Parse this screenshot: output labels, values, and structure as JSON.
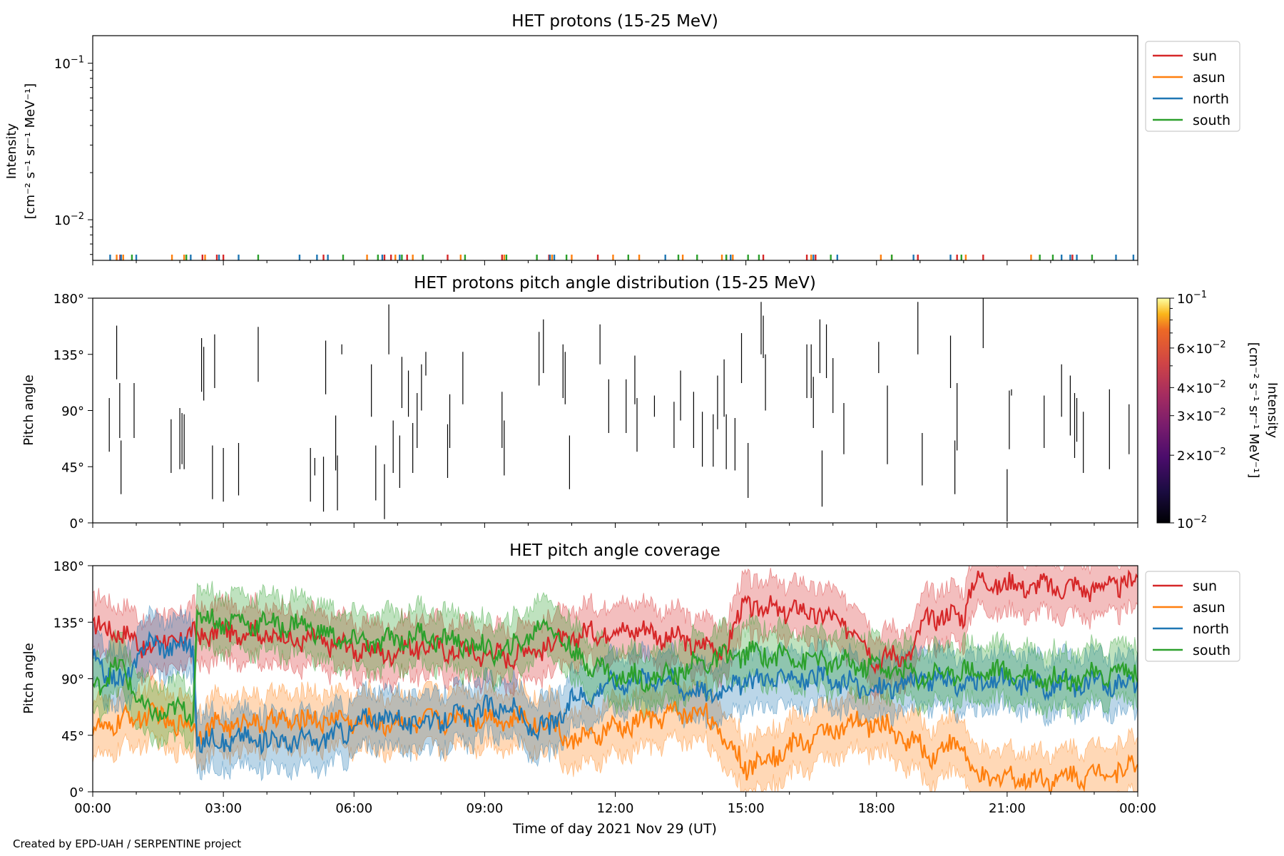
{
  "footer_credit": "Created by EPD-UAH / SERPENTINE project",
  "chart_data": [
    {
      "type": "line",
      "title": "HET protons (15-25 MeV)",
      "ylabel_line1": "Intensity",
      "ylabel_line2": "[cm⁻² s⁻¹ sr⁻¹ MeV⁻¹]",
      "yscale": "log",
      "ylim": [
        0.0055,
        0.15
      ],
      "yticks": [
        {
          "value": 0.01,
          "base": "10",
          "exp": "−2"
        },
        {
          "value": 0.1,
          "base": "10",
          "exp": "−1"
        }
      ],
      "xlim": [
        0,
        24
      ],
      "legend": "top-right outside",
      "series": [
        {
          "name": "sun",
          "color": "#d62728",
          "x": [
            0.63,
            2.52,
            2.85,
            3.0,
            5.3,
            6.7,
            6.85,
            7.22,
            8.15,
            9.4,
            10.48,
            11.6,
            14.55,
            15.4,
            16.4,
            16.6,
            18.95,
            19.85,
            20.45,
            22.5
          ]
        },
        {
          "name": "asun",
          "color": "#ff7f0e",
          "x": [
            0.55,
            0.7,
            1.82,
            2.1,
            2.58,
            6.3,
            6.95,
            7.35,
            8.45,
            9.45,
            10.55,
            11.0,
            11.95,
            12.55,
            13.55,
            14.45,
            14.7,
            16.5,
            18.1,
            18.35,
            20.05,
            21.55
          ]
        },
        {
          "name": "north",
          "color": "#1f77b4",
          "x": [
            0.4,
            0.65,
            1.0,
            2.25,
            2.9,
            3.35,
            4.75,
            5.15,
            5.4,
            6.65,
            7.05,
            10.5,
            10.6,
            13.15,
            14.65,
            16.55,
            17.1,
            18.85,
            19.7,
            22.25,
            22.45,
            22.6,
            23.5,
            23.9
          ]
        },
        {
          "name": "south",
          "color": "#2ca02c",
          "x": [
            0.9,
            2.15,
            3.8,
            5.75,
            6.55,
            7.1,
            7.58,
            8.55,
            9.5,
            10.2,
            10.88,
            12.3,
            13.45,
            13.88,
            14.55,
            15.05,
            15.3,
            16.95,
            18.35,
            19.95,
            21.75,
            22.05,
            22.95
          ]
        }
      ],
      "value_shown": 0.0058
    },
    {
      "type": "heatmap",
      "title": "HET protons pitch angle distribution (15-25 MeV)",
      "ylabel": "Pitch angle",
      "ylim": [
        0,
        180
      ],
      "yticks": [
        "0°",
        "45°",
        "90°",
        "135°",
        "180°"
      ],
      "xlim": [
        0,
        24
      ],
      "colorbar": {
        "label_line1": "Intensity",
        "label_line2": "[cm⁻² s⁻¹ sr⁻¹ MeV⁻¹]",
        "scale": "log",
        "range": [
          0.01,
          0.1
        ],
        "colormap": "inferno",
        "ticks": [
          {
            "value": 0.1,
            "mant": "",
            "exp": "−1"
          },
          {
            "value": 0.06,
            "mant": "6×",
            "exp": "−2"
          },
          {
            "value": 0.04,
            "mant": "4×",
            "exp": "−2"
          },
          {
            "value": 0.03,
            "mant": "3×",
            "exp": "−2"
          },
          {
            "value": 0.02,
            "mant": "2×",
            "exp": "−2"
          },
          {
            "value": 0.01,
            "mant": "",
            "exp": "−2"
          }
        ]
      },
      "segments": [
        [
          0.38,
          57,
          100
        ],
        [
          0.55,
          115,
          158
        ],
        [
          0.62,
          68,
          112
        ],
        [
          0.65,
          23,
          66
        ],
        [
          0.95,
          68,
          112
        ],
        [
          1.8,
          40,
          83
        ],
        [
          2.0,
          43,
          92
        ],
        [
          2.05,
          47,
          88
        ],
        [
          2.1,
          43,
          87
        ],
        [
          2.5,
          105,
          148
        ],
        [
          2.55,
          98,
          141
        ],
        [
          2.75,
          19,
          62
        ],
        [
          2.8,
          108,
          151
        ],
        [
          3.0,
          17,
          60
        ],
        [
          3.35,
          22,
          64
        ],
        [
          3.8,
          113,
          157
        ],
        [
          5.0,
          17,
          60
        ],
        [
          5.1,
          38,
          52
        ],
        [
          5.3,
          9,
          53
        ],
        [
          5.35,
          103,
          146
        ],
        [
          5.58,
          42,
          86
        ],
        [
          5.62,
          10,
          54
        ],
        [
          5.72,
          135,
          143
        ],
        [
          6.4,
          85,
          127
        ],
        [
          6.5,
          18,
          62
        ],
        [
          6.7,
          3,
          47
        ],
        [
          6.8,
          135,
          175
        ],
        [
          6.9,
          40,
          82
        ],
        [
          7.05,
          28,
          70
        ],
        [
          7.1,
          92,
          133
        ],
        [
          7.25,
          85,
          122
        ],
        [
          7.35,
          40,
          80
        ],
        [
          7.45,
          60,
          104
        ],
        [
          7.55,
          90,
          127
        ],
        [
          7.65,
          118,
          137
        ],
        [
          8.15,
          36,
          79
        ],
        [
          8.2,
          60,
          103
        ],
        [
          8.5,
          95,
          137
        ],
        [
          9.4,
          60,
          105
        ],
        [
          9.45,
          38,
          82
        ],
        [
          10.25,
          110,
          153
        ],
        [
          10.35,
          120,
          163
        ],
        [
          10.8,
          100,
          143
        ],
        [
          10.85,
          95,
          137
        ],
        [
          10.95,
          27,
          70
        ],
        [
          11.65,
          127,
          159
        ],
        [
          11.85,
          72,
          115
        ],
        [
          12.25,
          72,
          115
        ],
        [
          12.45,
          95,
          134
        ],
        [
          12.5,
          57,
          100
        ],
        [
          12.9,
          85,
          102
        ],
        [
          13.35,
          60,
          97
        ],
        [
          13.5,
          82,
          122
        ],
        [
          13.8,
          60,
          105
        ],
        [
          14.0,
          45,
          89
        ],
        [
          14.25,
          45,
          87
        ],
        [
          14.35,
          75,
          118
        ],
        [
          14.5,
          85,
          131
        ],
        [
          14.55,
          43,
          87
        ],
        [
          14.75,
          42,
          84
        ],
        [
          14.9,
          112,
          152
        ],
        [
          15.05,
          20,
          64
        ],
        [
          15.35,
          135,
          177
        ],
        [
          15.4,
          132,
          166
        ],
        [
          15.45,
          90,
          135
        ],
        [
          16.4,
          100,
          143
        ],
        [
          16.5,
          100,
          143
        ],
        [
          16.55,
          76,
          117
        ],
        [
          16.7,
          120,
          163
        ],
        [
          16.75,
          13,
          58
        ],
        [
          16.85,
          116,
          159
        ],
        [
          17.0,
          88,
          132
        ],
        [
          17.25,
          55,
          96
        ],
        [
          18.05,
          120,
          145
        ],
        [
          18.25,
          47,
          110
        ],
        [
          18.95,
          135,
          177
        ],
        [
          19.05,
          30,
          72
        ],
        [
          19.7,
          108,
          150
        ],
        [
          19.8,
          23,
          66
        ],
        [
          19.85,
          58,
          112
        ],
        [
          20.45,
          140,
          180
        ],
        [
          21.0,
          1,
          43
        ],
        [
          21.05,
          59,
          106
        ],
        [
          21.1,
          102,
          107
        ],
        [
          21.85,
          60,
          102
        ],
        [
          22.25,
          85,
          127
        ],
        [
          22.45,
          70,
          118
        ],
        [
          22.55,
          52,
          104
        ],
        [
          22.6,
          65,
          100
        ],
        [
          22.75,
          40,
          89
        ],
        [
          23.35,
          43,
          107
        ],
        [
          23.8,
          55,
          95
        ]
      ]
    },
    {
      "type": "line",
      "title": "HET pitch angle coverage",
      "ylabel": "Pitch angle",
      "xlabel": "Time of day 2021 Nov 29 (UT)",
      "ylim": [
        0,
        180
      ],
      "yticks": [
        "0°",
        "45°",
        "90°",
        "135°",
        "180°"
      ],
      "xlim": [
        0,
        24
      ],
      "xticks": [
        "00:00",
        "03:00",
        "06:00",
        "09:00",
        "12:00",
        "15:00",
        "18:00",
        "21:00",
        "00:00"
      ],
      "legend": "top-right outside",
      "band_halfwidth_deg": 22,
      "series": [
        {
          "name": "sun",
          "color": "#d62728",
          "x": [
            0,
            0.5,
            1.2,
            2.4,
            3.5,
            4.5,
            5.5,
            6.6,
            7.5,
            8.5,
            9.5,
            10.5,
            11.5,
            12.5,
            13.5,
            14.5,
            15.0,
            15.5,
            16.5,
            17.5,
            18.0,
            18.8,
            19.2,
            20.0,
            20.2,
            21.0,
            22.0,
            23.0,
            24.0
          ],
          "y": [
            130,
            130,
            115,
            125,
            128,
            122,
            118,
            110,
            116,
            112,
            108,
            117,
            127,
            130,
            120,
            113,
            150,
            145,
            143,
            130,
            105,
            110,
            140,
            140,
            168,
            165,
            163,
            162,
            168
          ]
        },
        {
          "name": "asun",
          "color": "#ff7f0e",
          "x": [
            0,
            1.2,
            2.4,
            3.5,
            5.5,
            6.6,
            7.5,
            8.5,
            9.5,
            10.5,
            11.0,
            12.0,
            13.0,
            14.0,
            15.0,
            16.0,
            17.0,
            18.0,
            18.8,
            19.2,
            20.0,
            20.2,
            21.0,
            22.0,
            23.0,
            24.0
          ],
          "y": [
            48,
            62,
            50,
            55,
            58,
            55,
            55,
            60,
            58,
            55,
            40,
            50,
            60,
            65,
            20,
            35,
            50,
            55,
            40,
            30,
            40,
            10,
            12,
            10,
            15,
            20
          ]
        },
        {
          "name": "north",
          "color": "#1f77b4",
          "x": [
            0,
            0.7,
            1.2,
            2.3,
            2.4,
            3.5,
            5.0,
            5.5,
            6.5,
            7.5,
            8.5,
            9.5,
            10.0,
            10.5,
            11.0,
            12.0,
            13.0,
            14.0,
            15.0,
            16.0,
            17.0,
            18.0,
            19.0,
            20.0,
            21.0,
            22.0,
            23.0,
            24.0
          ],
          "y": [
            105,
            85,
            118,
            115,
            40,
            42,
            40,
            44,
            60,
            55,
            60,
            70,
            52,
            50,
            72,
            88,
            92,
            78,
            88,
            92,
            88,
            80,
            90,
            86,
            88,
            85,
            86,
            88
          ]
        },
        {
          "name": "south",
          "color": "#2ca02c",
          "x": [
            0,
            0.7,
            1.2,
            2.3,
            2.4,
            3.5,
            5.0,
            5.5,
            6.5,
            7.5,
            8.5,
            9.5,
            10.0,
            10.5,
            11.0,
            12.0,
            13.0,
            14.0,
            15.0,
            16.0,
            17.0,
            18.0,
            19.0,
            20.0,
            21.0,
            22.0,
            23.0,
            24.0
          ],
          "y": [
            85,
            100,
            62,
            65,
            138,
            135,
            132,
            122,
            118,
            125,
            118,
            110,
            125,
            135,
            110,
            92,
            90,
            103,
            110,
            108,
            102,
            100,
            92,
            96,
            95,
            90,
            92,
            98
          ]
        }
      ]
    }
  ]
}
